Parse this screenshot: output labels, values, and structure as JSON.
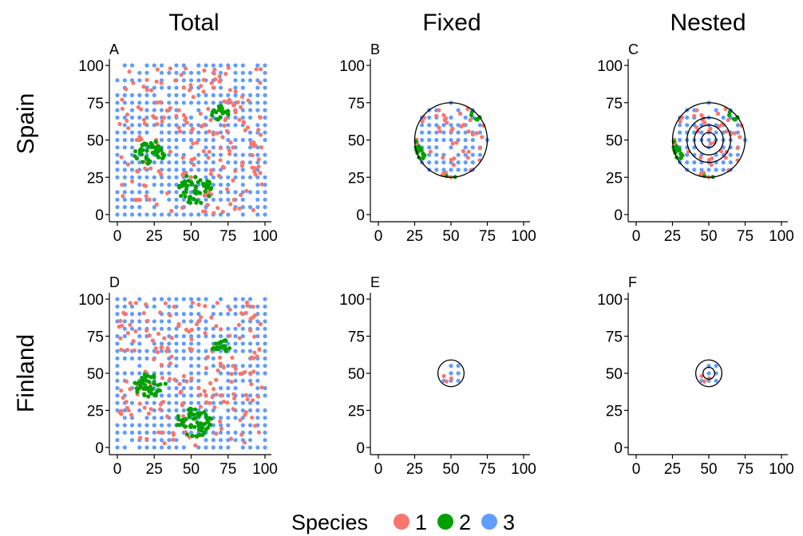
{
  "colors": {
    "1": "#F8766D",
    "2": "#00A000",
    "3": "#619CFF"
  },
  "legend": {
    "title": "Species",
    "items": [
      "1",
      "2",
      "3"
    ]
  },
  "columns": [
    "Total",
    "Fixed",
    "Nested"
  ],
  "rows": [
    "Spain",
    "Finland"
  ],
  "chart_data": [
    {
      "type": "scatter",
      "label": "A",
      "row": "Spain",
      "column": "Total",
      "xlim": [
        0,
        100
      ],
      "ylim": [
        0,
        100
      ],
      "xticks": [
        "0",
        "25",
        "50",
        "75",
        "100"
      ],
      "yticks": [
        "0",
        "25",
        "50",
        "75",
        "100"
      ],
      "pattern": "full-grid",
      "circles": []
    },
    {
      "type": "scatter",
      "label": "B",
      "row": "Spain",
      "column": "Fixed",
      "xlim": [
        0,
        100
      ],
      "ylim": [
        0,
        100
      ],
      "xticks": [
        "0",
        "25",
        "50",
        "75",
        "100"
      ],
      "yticks": [
        "0",
        "25",
        "50",
        "75",
        "100"
      ],
      "pattern": "window",
      "center": [
        50,
        50
      ],
      "circles": [
        25
      ]
    },
    {
      "type": "scatter",
      "label": "C",
      "row": "Spain",
      "column": "Nested",
      "xlim": [
        0,
        100
      ],
      "ylim": [
        0,
        100
      ],
      "xticks": [
        "0",
        "25",
        "50",
        "75",
        "100"
      ],
      "yticks": [
        "0",
        "25",
        "50",
        "75",
        "100"
      ],
      "pattern": "window",
      "center": [
        50,
        50
      ],
      "circles": [
        5,
        10,
        15,
        25
      ]
    },
    {
      "type": "scatter",
      "label": "D",
      "row": "Finland",
      "column": "Total",
      "xlim": [
        0,
        100
      ],
      "ylim": [
        0,
        100
      ],
      "xticks": [
        "0",
        "25",
        "50",
        "75",
        "100"
      ],
      "yticks": [
        "0",
        "25",
        "50",
        "75",
        "100"
      ],
      "pattern": "full-grid",
      "circles": []
    },
    {
      "type": "scatter",
      "label": "E",
      "row": "Finland",
      "column": "Fixed",
      "xlim": [
        0,
        100
      ],
      "ylim": [
        0,
        100
      ],
      "xticks": [
        "0",
        "25",
        "50",
        "75",
        "100"
      ],
      "yticks": [
        "0",
        "25",
        "50",
        "75",
        "100"
      ],
      "pattern": "window",
      "center": [
        50,
        50
      ],
      "circles": [
        9
      ]
    },
    {
      "type": "scatter",
      "label": "F",
      "row": "Finland",
      "column": "Nested",
      "xlim": [
        0,
        100
      ],
      "ylim": [
        0,
        100
      ],
      "xticks": [
        "0",
        "25",
        "50",
        "75",
        "100"
      ],
      "yticks": [
        "0",
        "25",
        "50",
        "75",
        "100"
      ],
      "pattern": "window",
      "center": [
        50,
        50
      ],
      "circles": [
        4,
        9
      ]
    }
  ]
}
